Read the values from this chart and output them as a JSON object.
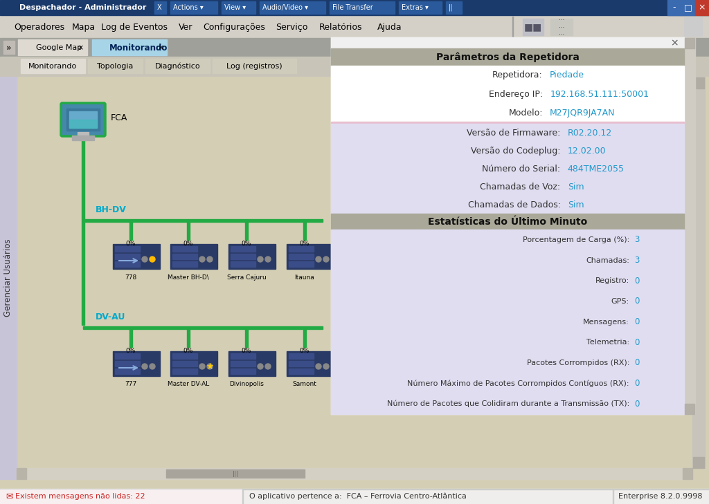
{
  "title_bar": "Despachador - Administrador",
  "title_bar_bg": "#1a3a6b",
  "title_bar_fg": "#ffffff",
  "menu_bar_bg": "#d4d0c8",
  "menu_items": [
    "Operadores",
    "Mapa",
    "Log de Eventos",
    "Ver",
    "Configurações",
    "Serviço",
    "Relatórios",
    "Ajuda"
  ],
  "tab_bar_bg": "#b8b4a8",
  "active_tab": "Monitorando",
  "tabs": [
    "Google Map",
    "Monitorando"
  ],
  "sub_tabs": [
    "Monitorando",
    "Topologia",
    "Diagnóstico",
    "Log (registros)"
  ],
  "main_bg": "#d4cfb4",
  "left_panel_bg": "#c8c4d8",
  "left_panel_text": "Gerenciar Usuários",
  "fca_label": "FCA",
  "bh_dv_label": "BH-DV",
  "dv_au_label": "DV-AU",
  "bh_dv_nodes": [
    "778",
    "Master BH-D\\",
    "Serra Cajuru",
    "Itauna"
  ],
  "bh_dv_red": [
    false,
    true,
    false,
    true
  ],
  "dv_au_nodes": [
    "777",
    "Master DV-AL",
    "Divinopolis",
    "Samont"
  ],
  "dv_au_red": [
    false,
    false,
    false,
    false
  ],
  "dialog_header_text": "Parâmetros da Repetidora",
  "dialog_section2_text": "Estatísticas do Último Minuto",
  "params": [
    [
      "Repetidora:",
      "Piedade"
    ],
    [
      "Endereço IP:",
      "192.168.51.111:50001"
    ],
    [
      "Modelo:",
      "M27JQR9JA7AN"
    ]
  ],
  "params2": [
    [
      "Versão de Firmaware:",
      "R02.20.12"
    ],
    [
      "Versão do Codeplug:",
      "12.02.00"
    ],
    [
      "Número do Serial:",
      "484TME2055"
    ],
    [
      "Chamadas de Voz:",
      "Sim"
    ],
    [
      "Chamadas de Dados:",
      "Sim"
    ]
  ],
  "stats": [
    [
      "Porcentagem de Carga (%):",
      "3"
    ],
    [
      "Chamadas:",
      "3"
    ],
    [
      "Registro:",
      "0"
    ],
    [
      "GPS:",
      "0"
    ],
    [
      "Mensagens:",
      "0"
    ],
    [
      "Telemetria:",
      "0"
    ],
    [
      "Pacotes Corrompidos (RX):",
      "0"
    ],
    [
      "Número Máximo de Pacotes Corrompidos Contíguos (RX):",
      "0"
    ],
    [
      "Número de Pacotes que Colidiram durante a Transmissão (TX):",
      "0"
    ]
  ],
  "status_bar_text1": "Existem mensagens não lidas: 22",
  "status_bar_text2": "O aplicativo pertence a:  FCA – Ferrovia Centro-Atlântica",
  "status_bar_text3": "Enterprise 8.2.0.9998"
}
